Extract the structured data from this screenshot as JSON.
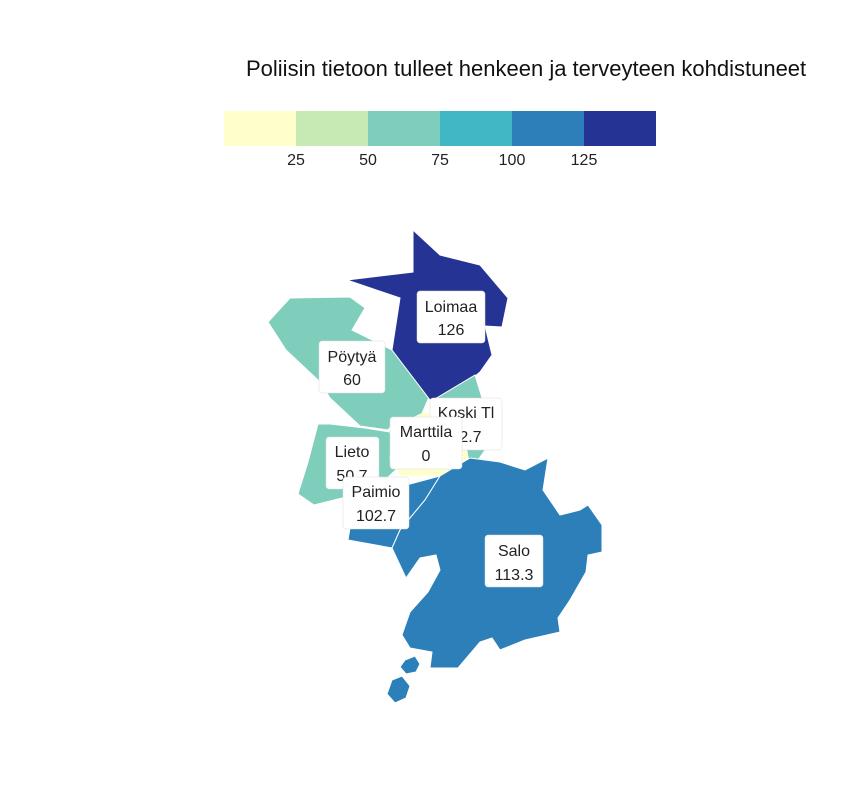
{
  "title": "Poliisin tietoon tulleet henkeen ja terveyteen kohdistuneet",
  "legend": {
    "colors": [
      "#ffffcc",
      "#c7e9b4",
      "#7fcdbb",
      "#41b6c4",
      "#2c7fb8",
      "#253494"
    ],
    "ticks": [
      "25",
      "50",
      "75",
      "100",
      "125"
    ]
  },
  "chart_data": {
    "type": "choropleth",
    "title": "Poliisin tietoon tulleet henkeen ja terveyteen kohdistuneet",
    "scale_breaks": [
      25,
      50,
      75,
      100,
      125
    ],
    "regions": [
      {
        "name": "Loimaa",
        "value_label": "126",
        "value": 126
      },
      {
        "name": "Pöytyä",
        "value_label": "60",
        "value": 60
      },
      {
        "name": "Koski Tl",
        "value_label": "62.7",
        "value": 62.7
      },
      {
        "name": "Marttila",
        "value_label": "0",
        "value": 0
      },
      {
        "name": "Lieto",
        "value_label": "50.7",
        "value": 50.7
      },
      {
        "name": "Paimio",
        "value_label": "102.7",
        "value": 102.7
      },
      {
        "name": "Salo",
        "value_label": "113.3",
        "value": 113.3
      }
    ]
  }
}
